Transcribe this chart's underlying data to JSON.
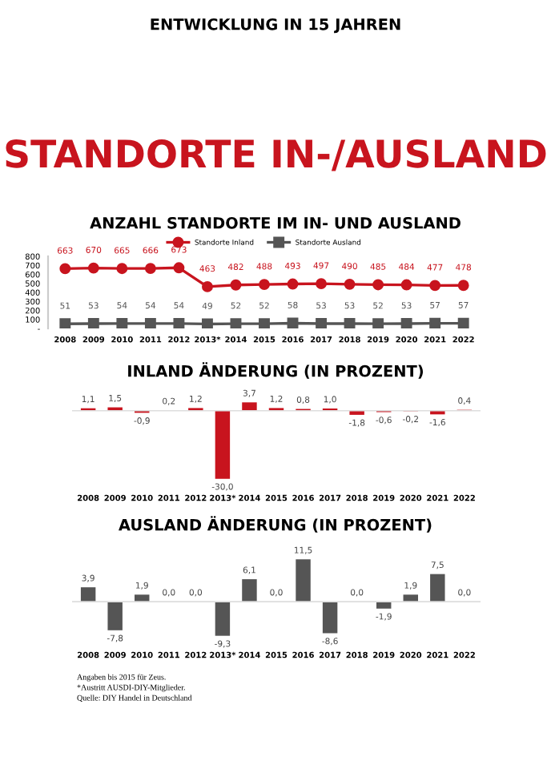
{
  "chart_data": [
    {
      "type": "other",
      "title": "STANDORTE IN-/AUSLAND",
      "subtitle": "ENTWICKLUNG IN 15 JAHREN"
    },
    {
      "type": "line",
      "title": "ANZAHL STANDORTE IM IN- UND AUSLAND",
      "categories": [
        "2008",
        "2009",
        "2010",
        "2011",
        "2012",
        "2013*",
        "2014",
        "2015",
        "2016",
        "2017",
        "2018",
        "2019",
        "2020",
        "2021",
        "2022"
      ],
      "series": [
        {
          "name": "Standorte Inland",
          "color": "#c8141e",
          "marker": "circle",
          "values": [
            663,
            670,
            665,
            666,
            673,
            463,
            482,
            488,
            493,
            497,
            490,
            485,
            484,
            477,
            478
          ]
        },
        {
          "name": "Standorte Ausland",
          "color": "#555555",
          "marker": "square",
          "values": [
            51,
            53,
            54,
            54,
            54,
            49,
            52,
            52,
            58,
            53,
            53,
            52,
            53,
            57,
            57
          ]
        }
      ],
      "ylim": [
        0,
        800
      ],
      "yticks": [
        {
          "value": 0,
          "label": "-"
        },
        100,
        200,
        300,
        400,
        500,
        600,
        700,
        800
      ],
      "data_labels": true,
      "legend": "top",
      "grid": false
    },
    {
      "type": "bar",
      "title": "INLAND ÄNDERUNG (IN PROZENT)",
      "categories": [
        "2008",
        "2009",
        "2010",
        "2011",
        "2012",
        "2013*",
        "2014",
        "2015",
        "2016",
        "2017",
        "2018",
        "2019",
        "2020",
        "2021",
        "2022"
      ],
      "values": [
        1.1,
        1.5,
        -0.9,
        0.2,
        1.2,
        -30.0,
        3.7,
        1.2,
        0.8,
        1.0,
        -1.8,
        -0.6,
        -0.2,
        -1.6,
        0.4
      ],
      "color": "#c8141e",
      "value_labels": [
        "1,1",
        "1,5",
        "-0,9",
        "0,2",
        "1,2",
        "-30,0",
        "3,7",
        "1,2",
        "0,8",
        "1,0",
        "-1,8",
        "-0,6",
        "-0,2",
        "-1,6",
        "0,4"
      ]
    },
    {
      "type": "bar",
      "title": "AUSLAND ÄNDERUNG (IN PROZENT)",
      "categories": [
        "2008",
        "2009",
        "2010",
        "2011",
        "2012",
        "2013*",
        "2014",
        "2015",
        "2016",
        "2017",
        "2018",
        "2019",
        "2020",
        "2021",
        "2022"
      ],
      "values": [
        3.9,
        -7.8,
        1.9,
        0.0,
        0.0,
        -9.3,
        6.1,
        0.0,
        11.5,
        -8.6,
        0.0,
        -1.9,
        1.9,
        7.5,
        0.0
      ],
      "color": "#555555",
      "value_labels": [
        "3,9",
        "-7,8",
        "1,9",
        "0,0",
        "0,0",
        "-9,3",
        "6,1",
        "0,0",
        "11,5",
        "-8,6",
        "0,0",
        "-1,9",
        "1,9",
        "7,5",
        "0,0"
      ],
      "annotations": [
        "Angaben bis 2015 für Zeus.",
        "*Austritt AUSDI-DIY-Mitglieder.",
        "Quelle: DIY Handel in Deutschland"
      ]
    }
  ]
}
